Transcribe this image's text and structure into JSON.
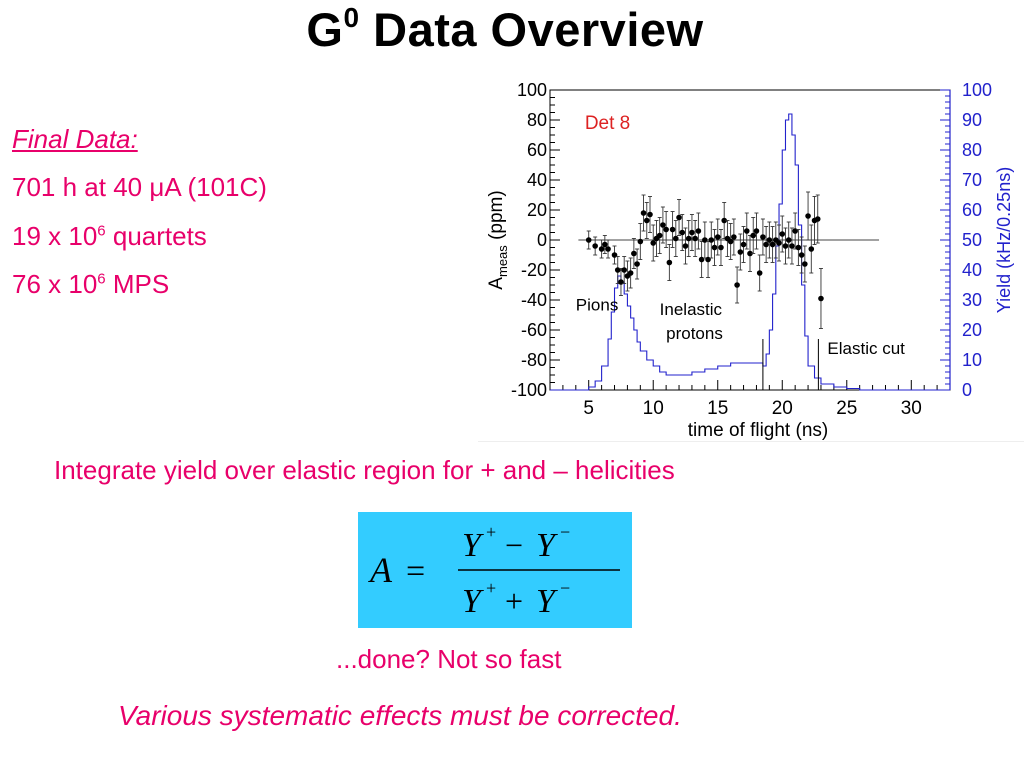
{
  "slide": {
    "title_main": "G",
    "title_sup": "0",
    "title_rest": " Data Overview",
    "final_data": "Final Data:",
    "line1_prefix": "701 h at 40 ",
    "line1_mu": "μ",
    "line1_suffix": "A (101C)",
    "line2_prefix": "19 x 10",
    "line2_sup": "6",
    "line2_suffix": " quartets",
    "line3_prefix": "76 x 10",
    "line3_sup": "6",
    "line3_suffix": " MPS",
    "integrate_text": "Integrate yield over elastic region for + and – helicities",
    "done_text": "...done?  Not so fast",
    "various_text": "Various systematic effects must be corrected.",
    "formula": {
      "lhs": "A",
      "eq": "=",
      "Y": "Y",
      "plus": "+",
      "minus": "−"
    }
  },
  "colors": {
    "accent_text": "#e8006a",
    "formula_bg": "#33ccff",
    "yield_axis": "#2222cc",
    "det_label": "#dd2222"
  },
  "chart_data": {
    "type": "scatter",
    "xlabel": "time of flight (ns)",
    "ylabel_left_main": "A",
    "ylabel_left_sub": "meas",
    "ylabel_left_unit": " (ppm)",
    "ylabel_right": "Yield (kHz/0.25ns)",
    "xlim": [
      2,
      33
    ],
    "ylim_left": [
      -100,
      100
    ],
    "ylim_right": [
      0,
      100
    ],
    "x_ticks": [
      5,
      10,
      15,
      20,
      25,
      30
    ],
    "y_ticks_left": [
      -100,
      -80,
      -60,
      -40,
      -20,
      0,
      20,
      40,
      60,
      80,
      100
    ],
    "y_ticks_right": [
      0,
      10,
      20,
      30,
      40,
      50,
      60,
      70,
      80,
      90,
      100
    ],
    "annotations": {
      "det": "Det 8",
      "pions": "Pions",
      "inelastic_1": "Inelastic",
      "inelastic_2": "protons",
      "elastic_cut": "Elastic cut"
    },
    "cut_lines_x": [
      18.5,
      22.8
    ],
    "series": [
      {
        "axis": "left",
        "style": "points-with-errors",
        "x": [
          5.0,
          5.5,
          6.0,
          6.25,
          6.5,
          7.0,
          7.25,
          7.5,
          7.75,
          8.0,
          8.25,
          8.5,
          8.75,
          9.0,
          9.25,
          9.5,
          9.75,
          10.0,
          10.25,
          10.5,
          10.75,
          11.0,
          11.25,
          11.5,
          11.75,
          12.0,
          12.25,
          12.5,
          12.75,
          13.0,
          13.25,
          13.5,
          13.75,
          14.0,
          14.25,
          14.5,
          14.75,
          15.0,
          15.25,
          15.5,
          15.75,
          16.0,
          16.25,
          16.5,
          16.75,
          17.0,
          17.25,
          17.5,
          17.75,
          18.0,
          18.25,
          18.5,
          18.75,
          19.0,
          19.25,
          19.5,
          19.75,
          20.0,
          20.25,
          20.5,
          20.75,
          21.0,
          21.25,
          21.5,
          21.75,
          22.0,
          22.25,
          22.5,
          22.75,
          23.0
        ],
        "y": [
          0,
          -4,
          -6,
          -3,
          -6,
          -10,
          -20,
          -28,
          -20,
          -24,
          -22,
          -9,
          -16,
          -1,
          18,
          13,
          17,
          -2,
          1,
          3,
          10,
          7,
          -15,
          7,
          1,
          15,
          5,
          -4,
          1,
          5,
          1,
          6,
          -13,
          0,
          -13,
          0,
          -5,
          2,
          -5,
          13,
          1,
          -1,
          2,
          -30,
          -8,
          -3,
          6,
          -9,
          3,
          6,
          -22,
          2,
          -3,
          0,
          -3,
          0,
          -2,
          4,
          -4,
          0,
          -4,
          6,
          -5,
          -10,
          -16,
          16,
          -6,
          13,
          14,
          -39
        ],
        "err": [
          6,
          6,
          6,
          6,
          6,
          6,
          9,
          9,
          9,
          10,
          10,
          10,
          10,
          12,
          12,
          12,
          12,
          12,
          12,
          12,
          12,
          12,
          12,
          12,
          12,
          12,
          12,
          12,
          12,
          12,
          12,
          12,
          12,
          12,
          12,
          12,
          12,
          12,
          12,
          12,
          12,
          12,
          12,
          12,
          12,
          12,
          12,
          12,
          12,
          12,
          12,
          12,
          12,
          12,
          12,
          12,
          12,
          12,
          12,
          12,
          12,
          12,
          12,
          12,
          12,
          16,
          16,
          16,
          16,
          20
        ]
      },
      {
        "axis": "right",
        "style": "step",
        "x": [
          2,
          4,
          5,
          5.5,
          6,
          6.5,
          6.75,
          7,
          7.25,
          7.5,
          7.75,
          8,
          8.25,
          8.5,
          8.75,
          9,
          9.5,
          10,
          10.5,
          11,
          12,
          13,
          14,
          15,
          16,
          17,
          17.5,
          18,
          18.5,
          18.75,
          19,
          19.25,
          19.5,
          19.75,
          20,
          20.25,
          20.5,
          20.75,
          21,
          21.25,
          21.5,
          21.75,
          22,
          22.5,
          23,
          24,
          25,
          26,
          27,
          28,
          29,
          30,
          31,
          32,
          33
        ],
        "y": [
          0,
          0,
          1,
          3,
          8,
          17,
          26,
          34,
          38,
          36,
          32,
          28,
          24,
          20,
          16,
          13,
          10,
          8,
          6,
          5,
          5,
          6,
          7,
          8,
          9,
          9,
          9,
          9,
          8,
          12,
          20,
          32,
          48,
          62,
          80,
          90,
          92,
          85,
          75,
          55,
          35,
          18,
          8,
          4,
          2,
          1,
          0.5,
          0,
          0,
          0,
          0,
          0,
          0,
          0,
          0
        ]
      }
    ]
  }
}
